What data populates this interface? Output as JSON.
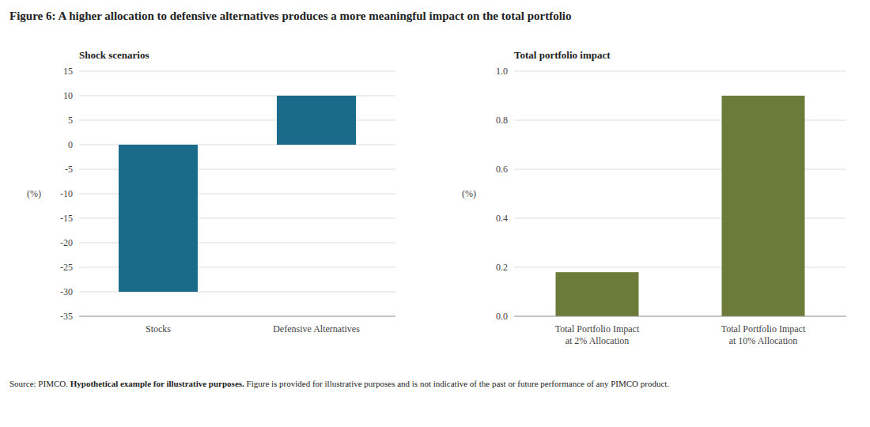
{
  "title": "Figure 6: A higher allocation to defensive alternatives produces a more meaningful impact on the total portfolio",
  "footnote": [
    "Source: PIMCO. ",
    "Hypothetical example for illustrative purposes.",
    " Figure is provided for illustrative purposes and is not indicative of the past or future performance of any PIMCO product."
  ],
  "chart_data": [
    {
      "type": "bar",
      "subtitle": "Shock scenarios",
      "categories": [
        "Stocks",
        "Defensive Alternatives"
      ],
      "values": [
        -30,
        10
      ],
      "colors": [
        "#1a6b8a",
        "#1a6b8a"
      ],
      "ylim": [
        -35,
        15
      ],
      "yticks": [
        -35,
        -30,
        -25,
        -20,
        -15,
        -10,
        -5,
        0,
        5,
        10,
        15
      ],
      "ylabel": "(%)",
      "grid": true
    },
    {
      "type": "bar",
      "subtitle": "Total portfolio impact",
      "categories": [
        "Total Portfolio Impact\nat 2% Allocation",
        "Total Portfolio Impact\nat 10% Allocation"
      ],
      "values": [
        0.18,
        0.9
      ],
      "colors": [
        "#6b7c3a",
        "#6b7c3a"
      ],
      "ylim": [
        0.0,
        1.0
      ],
      "yticks": [
        {
          "value": 0.0,
          "label": "0.0"
        },
        0.2,
        0.4,
        0.6,
        0.8,
        {
          "value": 1.0,
          "label": "1.0"
        }
      ],
      "ylabel": "(%)",
      "grid": true
    }
  ]
}
